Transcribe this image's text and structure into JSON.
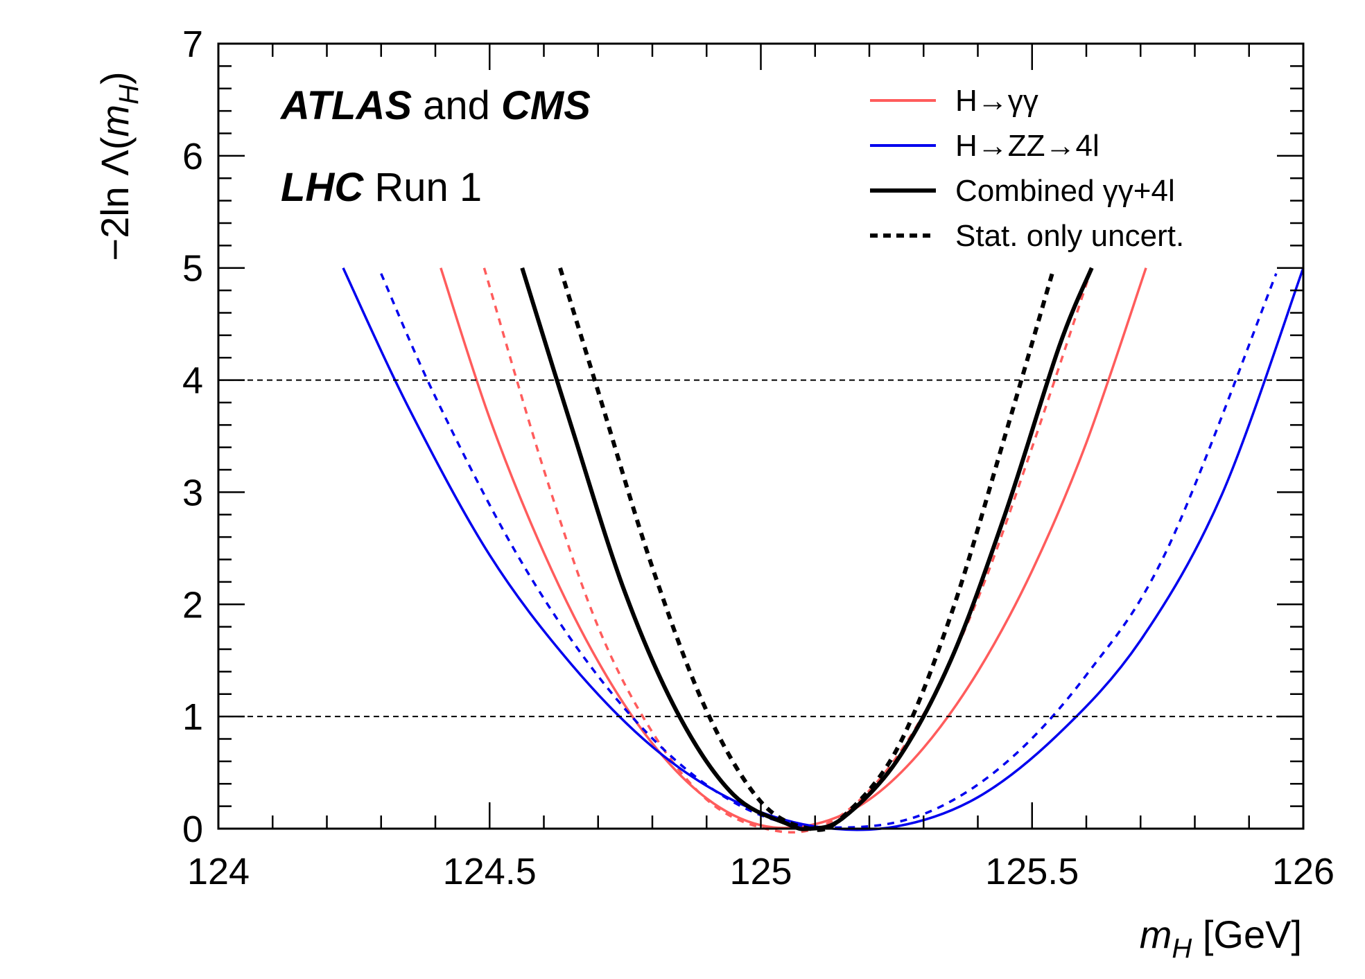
{
  "chart_data": {
    "type": "line",
    "title_lines": [
      [
        {
          "text": "ATLAS",
          "bold": true,
          "italic": true
        },
        {
          "text": " and ",
          "bold": false,
          "italic": false
        },
        {
          "text": "CMS",
          "bold": true,
          "italic": true
        }
      ],
      [
        {
          "text": "LHC",
          "bold": true,
          "italic": true
        },
        {
          "text": " Run 1",
          "bold": false,
          "italic": false
        }
      ]
    ],
    "xlabel": {
      "italic": "m",
      "sub": "H",
      "rest": " [GeV]"
    },
    "ylabel": {
      "prefix": "−2ln Λ(",
      "italic": "m",
      "sub": "H",
      "suffix": ")"
    },
    "xlim": [
      124,
      126
    ],
    "ylim": [
      0,
      7
    ],
    "xticks": [
      124,
      124.5,
      125,
      125.5,
      126
    ],
    "xtick_labels": [
      "124",
      "124.5",
      "125",
      "125.5",
      "126"
    ],
    "yticks": [
      0,
      1,
      2,
      3,
      4,
      5,
      6,
      7
    ],
    "ytick_labels": [
      "0",
      "1",
      "2",
      "3",
      "4",
      "5",
      "6",
      "7"
    ],
    "reference_lines": [
      1,
      4
    ],
    "legend_position": "top-right",
    "legend": [
      {
        "label": "H→γγ",
        "color": "#ff5c5c",
        "style": "solid"
      },
      {
        "label": "H→ZZ→4l",
        "color": "#0000ee",
        "style": "solid"
      },
      {
        "label": "Combined γγ+4l",
        "color": "#000000",
        "style": "solid-thick"
      },
      {
        "label": "Stat. only uncert.",
        "color": "#000000",
        "style": "dashed"
      }
    ],
    "series": [
      {
        "name": "H→γγ (total)",
        "color": "#ff5c5c",
        "style": "solid",
        "x": [
          124.41,
          124.5,
          124.6,
          124.7,
          124.8,
          124.9,
          125.0,
          125.1,
          125.2,
          125.3,
          125.4,
          125.5,
          125.6,
          125.71
        ],
        "y": [
          5.0,
          3.66,
          2.46,
          1.49,
          0.76,
          0.27,
          0.03,
          0.04,
          0.26,
          0.72,
          1.4,
          2.3,
          3.44,
          5.0
        ]
      },
      {
        "name": "H→γγ (stat only)",
        "color": "#ff5c5c",
        "style": "dashed",
        "x": [
          124.49,
          124.6,
          124.7,
          124.8,
          124.9,
          125.0,
          125.1,
          125.2,
          125.3,
          125.4,
          125.5,
          125.61
        ],
        "y": [
          5.0,
          3.2,
          1.8,
          0.86,
          0.26,
          0.01,
          0.0,
          0.34,
          1.02,
          2.05,
          3.4,
          5.0
        ]
      },
      {
        "name": "H→ZZ→4l (total)",
        "color": "#0000ee",
        "style": "solid",
        "x": [
          124.23,
          124.35,
          124.5,
          124.65,
          124.8,
          124.95,
          125.1,
          125.25,
          125.4,
          125.55,
          125.7,
          125.85,
          126.0
        ],
        "y": [
          5.0,
          3.76,
          2.44,
          1.47,
          0.73,
          0.25,
          0.02,
          0.02,
          0.28,
          0.85,
          1.68,
          2.98,
          5.0
        ]
      },
      {
        "name": "H→ZZ→4l (stat only)",
        "color": "#0000ee",
        "style": "dashed",
        "x": [
          124.3,
          124.4,
          124.55,
          124.7,
          124.85,
          125.0,
          125.15,
          125.3,
          125.45,
          125.6,
          125.75,
          125.95
        ],
        "y": [
          4.95,
          3.85,
          2.45,
          1.36,
          0.58,
          0.12,
          0.01,
          0.13,
          0.58,
          1.37,
          2.5,
          4.95
        ]
      },
      {
        "name": "Combined γγ+4l (total)",
        "color": "#000000",
        "style": "solid",
        "x": [
          124.56,
          124.65,
          124.75,
          124.85,
          124.95,
          125.05,
          125.09,
          125.15,
          125.25,
          125.35,
          125.45,
          125.55,
          125.61
        ],
        "y": [
          5.0,
          3.6,
          2.1,
          1.0,
          0.3,
          0.04,
          0.0,
          0.09,
          0.6,
          1.5,
          2.8,
          4.3,
          5.0
        ]
      },
      {
        "name": "Combined γγ+4l (stat only)",
        "color": "#000000",
        "style": "dashed",
        "x": [
          124.63,
          124.7,
          124.8,
          124.9,
          125.0,
          125.09,
          125.15,
          125.25,
          125.35,
          125.45,
          125.54
        ],
        "y": [
          5.0,
          3.9,
          2.33,
          1.05,
          0.24,
          0.0,
          0.1,
          0.7,
          1.9,
          3.5,
          5.0
        ]
      }
    ]
  }
}
